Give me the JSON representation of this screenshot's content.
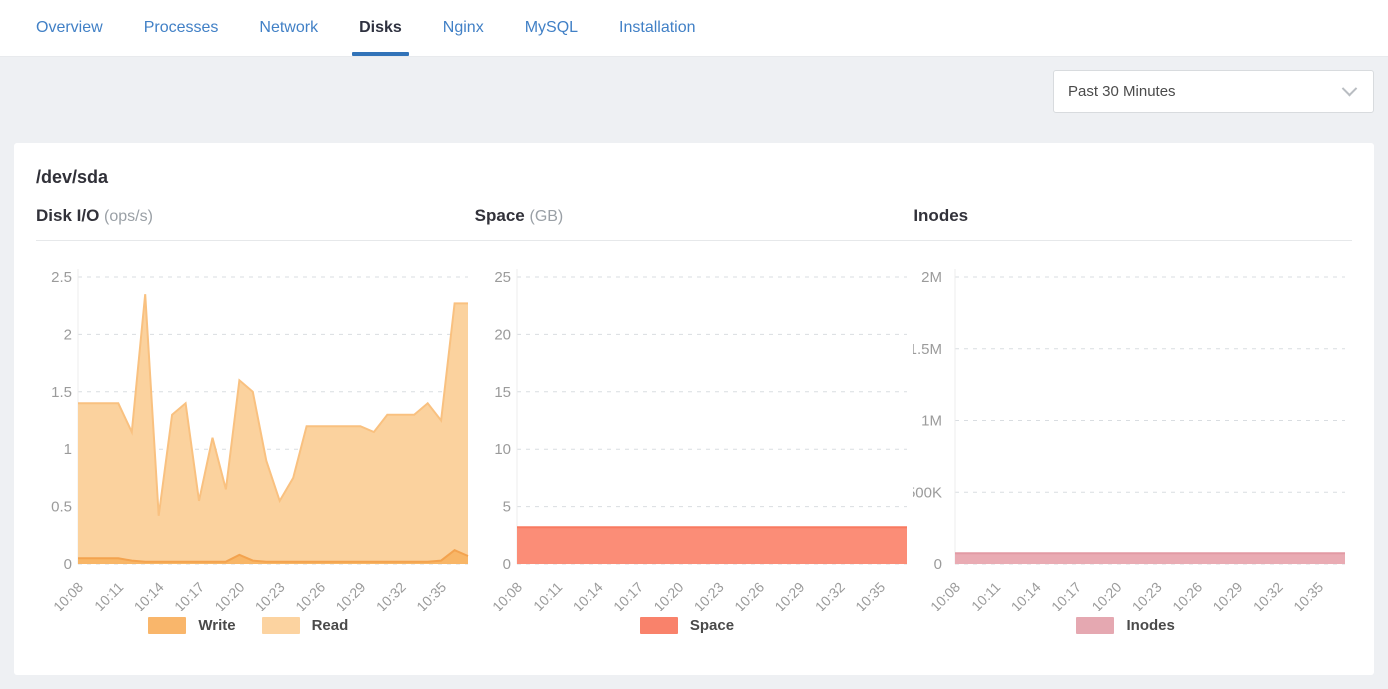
{
  "tabs": [
    {
      "label": "Overview",
      "active": false
    },
    {
      "label": "Processes",
      "active": false
    },
    {
      "label": "Network",
      "active": false
    },
    {
      "label": "Disks",
      "active": true
    },
    {
      "label": "Nginx",
      "active": false
    },
    {
      "label": "MySQL",
      "active": false
    },
    {
      "label": "Installation",
      "active": false
    }
  ],
  "toolbar": {
    "time_range": "Past 30 Minutes"
  },
  "card": {
    "device": "/dev/sda"
  },
  "colors": {
    "tab_link": "#4180c6",
    "tab_active_underline": "#3273b8",
    "page_background": "#eef0f3",
    "axis_text": "#9b9b9b",
    "gridline": "#d9dde1",
    "write_orange": "#f8b667",
    "read_orange": "#fbd29e",
    "space_salmon": "#fb8d77",
    "inodes_pink": "#e9abb3"
  },
  "chart_data": [
    {
      "type": "area",
      "title": "Disk I/O",
      "unit": "(ops/s)",
      "x": [
        "10:08",
        "10:09",
        "10:10",
        "10:11",
        "10:12",
        "10:13",
        "10:14",
        "10:15",
        "10:16",
        "10:17",
        "10:18",
        "10:19",
        "10:20",
        "10:21",
        "10:22",
        "10:23",
        "10:24",
        "10:25",
        "10:26",
        "10:27",
        "10:28",
        "10:29",
        "10:30",
        "10:31",
        "10:32",
        "10:33",
        "10:34",
        "10:35",
        "10:36",
        "10:37"
      ],
      "xtick_indices": [
        0,
        3,
        6,
        9,
        12,
        15,
        18,
        21,
        24,
        27
      ],
      "ylim": [
        0,
        2.5
      ],
      "yticks": [
        {
          "v": 0,
          "label": "0"
        },
        {
          "v": 0.5,
          "label": "0.5"
        },
        {
          "v": 1,
          "label": "1"
        },
        {
          "v": 1.5,
          "label": "1.5"
        },
        {
          "v": 2,
          "label": "2"
        },
        {
          "v": 2.5,
          "label": "2.5"
        }
      ],
      "series": [
        {
          "name": "Read",
          "fill": "#fbd29e",
          "stroke": "#f9c180",
          "values": [
            1.4,
            1.4,
            1.4,
            1.4,
            1.15,
            2.35,
            0.42,
            1.3,
            1.4,
            0.55,
            1.1,
            0.65,
            1.6,
            1.5,
            0.9,
            0.55,
            0.75,
            1.2,
            1.2,
            1.2,
            1.2,
            1.2,
            1.15,
            1.3,
            1.3,
            1.3,
            1.4,
            1.25,
            2.27,
            2.27
          ]
        },
        {
          "name": "Write",
          "fill": "#f8b667",
          "stroke": "#f3a34f",
          "values": [
            0.05,
            0.05,
            0.05,
            0.05,
            0.03,
            0.02,
            0.02,
            0.02,
            0.02,
            0.02,
            0.02,
            0.02,
            0.08,
            0.03,
            0.02,
            0.02,
            0.02,
            0.02,
            0.02,
            0.02,
            0.02,
            0.02,
            0.02,
            0.02,
            0.02,
            0.02,
            0.02,
            0.03,
            0.12,
            0.07
          ]
        }
      ],
      "legend": [
        {
          "label": "Write",
          "color": "#f9b66b"
        },
        {
          "label": "Read",
          "color": "#fcd3a0"
        }
      ]
    },
    {
      "type": "area",
      "title": "Space",
      "unit": "(GB)",
      "x": [
        "10:08",
        "10:09",
        "10:10",
        "10:11",
        "10:12",
        "10:13",
        "10:14",
        "10:15",
        "10:16",
        "10:17",
        "10:18",
        "10:19",
        "10:20",
        "10:21",
        "10:22",
        "10:23",
        "10:24",
        "10:25",
        "10:26",
        "10:27",
        "10:28",
        "10:29",
        "10:30",
        "10:31",
        "10:32",
        "10:33",
        "10:34",
        "10:35",
        "10:36",
        "10:37"
      ],
      "xtick_indices": [
        0,
        3,
        6,
        9,
        12,
        15,
        18,
        21,
        24,
        27
      ],
      "ylim": [
        0,
        25
      ],
      "yticks": [
        {
          "v": 0,
          "label": "0"
        },
        {
          "v": 5,
          "label": "5"
        },
        {
          "v": 10,
          "label": "10"
        },
        {
          "v": 15,
          "label": "15"
        },
        {
          "v": 20,
          "label": "20"
        },
        {
          "v": 25,
          "label": "25"
        }
      ],
      "series": [
        {
          "name": "Space",
          "fill": "#fb8d77",
          "stroke": "#f87a60",
          "values": [
            3.2,
            3.2,
            3.2,
            3.2,
            3.2,
            3.2,
            3.2,
            3.2,
            3.2,
            3.2,
            3.2,
            3.2,
            3.2,
            3.2,
            3.2,
            3.2,
            3.2,
            3.2,
            3.2,
            3.2,
            3.2,
            3.2,
            3.2,
            3.2,
            3.2,
            3.2,
            3.2,
            3.2,
            3.2,
            3.2
          ]
        }
      ],
      "legend": [
        {
          "label": "Space",
          "color": "#f9826b"
        }
      ]
    },
    {
      "type": "area",
      "title": "Inodes",
      "unit": "",
      "x": [
        "10:08",
        "10:09",
        "10:10",
        "10:11",
        "10:12",
        "10:13",
        "10:14",
        "10:15",
        "10:16",
        "10:17",
        "10:18",
        "10:19",
        "10:20",
        "10:21",
        "10:22",
        "10:23",
        "10:24",
        "10:25",
        "10:26",
        "10:27",
        "10:28",
        "10:29",
        "10:30",
        "10:31",
        "10:32",
        "10:33",
        "10:34",
        "10:35",
        "10:36",
        "10:37"
      ],
      "xtick_indices": [
        0,
        3,
        6,
        9,
        12,
        15,
        18,
        21,
        24,
        27
      ],
      "ylim": [
        0,
        2000000
      ],
      "ylabel_x": 29,
      "yticks": [
        {
          "v": 0,
          "label": "0"
        },
        {
          "v": 500000,
          "label": "500K"
        },
        {
          "v": 1000000,
          "label": "1M"
        },
        {
          "v": 1500000,
          "label": "1.5M"
        },
        {
          "v": 2000000,
          "label": "2M"
        }
      ],
      "series": [
        {
          "name": "Inodes",
          "fill": "#e9abb3",
          "stroke": "#e29aa4",
          "values": [
            75000,
            75000,
            75000,
            75000,
            75000,
            75000,
            75000,
            75000,
            75000,
            75000,
            75000,
            75000,
            75000,
            75000,
            75000,
            75000,
            75000,
            75000,
            75000,
            75000,
            75000,
            75000,
            75000,
            75000,
            75000,
            75000,
            75000,
            75000,
            75000,
            75000
          ]
        }
      ],
      "legend": [
        {
          "label": "Inodes",
          "color": "#e5a8b1"
        }
      ]
    }
  ]
}
